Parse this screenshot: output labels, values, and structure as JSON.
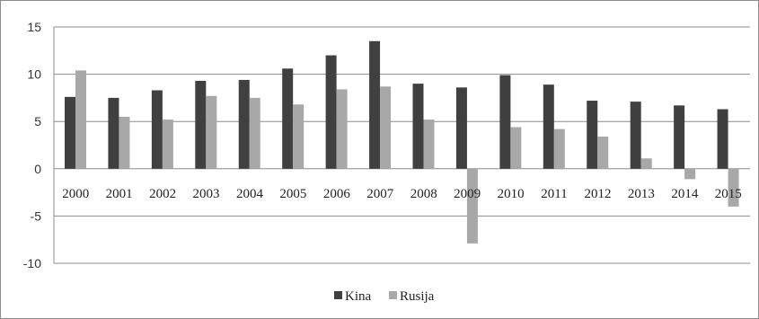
{
  "chart_data": {
    "type": "bar",
    "categories": [
      "2000",
      "2001",
      "2002",
      "2003",
      "2004",
      "2005",
      "2006",
      "2007",
      "2008",
      "2009",
      "2010",
      "2011",
      "2012",
      "2013",
      "2014",
      "2015"
    ],
    "series": [
      {
        "name": "Kina",
        "values": [
          7.6,
          7.5,
          8.3,
          9.3,
          9.4,
          10.6,
          12.0,
          13.5,
          9.0,
          8.6,
          9.9,
          8.9,
          7.2,
          7.1,
          6.7,
          6.3
        ],
        "color": "#404040"
      },
      {
        "name": "Rusija",
        "values": [
          10.4,
          5.5,
          5.2,
          7.7,
          7.5,
          6.8,
          8.4,
          8.7,
          5.2,
          -7.9,
          4.4,
          4.2,
          3.4,
          1.1,
          -1.1,
          -4.0
        ],
        "color": "#a8a8a8"
      }
    ],
    "ylim": [
      -10,
      15
    ],
    "yticks": [
      "15",
      "10",
      "5",
      "0",
      "-5",
      "-10"
    ],
    "ytick_values": [
      15,
      10,
      5,
      0,
      -5,
      -10
    ],
    "grid": true,
    "legend_position": "bottom-center",
    "title": "",
    "xlabel": "",
    "ylabel": ""
  }
}
